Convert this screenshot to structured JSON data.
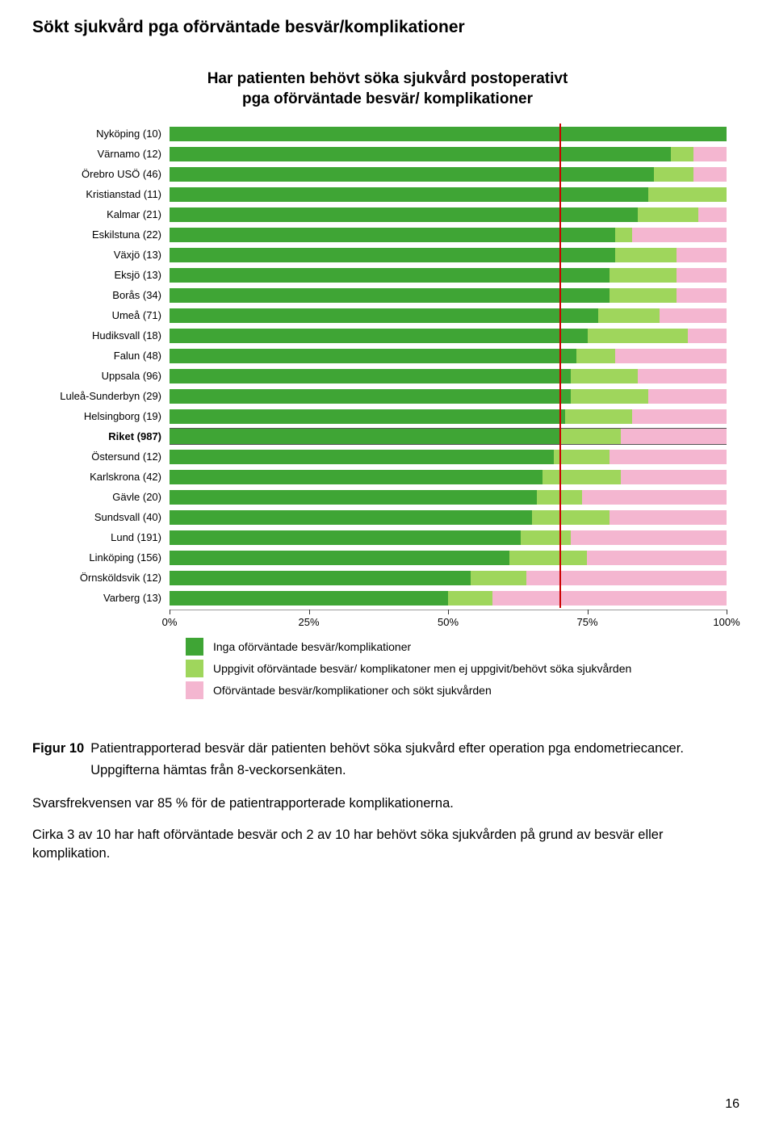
{
  "heading": "Sökt sjukvård pga oförväntade besvär/komplikationer",
  "chart": {
    "type": "stacked-bar-horizontal",
    "title_line1": "Har patienten behövt söka sjukvård postoperativt",
    "title_line2": "pga oförväntade besvär/ komplikationer",
    "xlim": [
      0,
      100
    ],
    "xticks": [
      0,
      25,
      50,
      75,
      100
    ],
    "xtick_labels": [
      "0%",
      "25%",
      "50%",
      "75%",
      "100%"
    ],
    "reference_line": {
      "value": 70,
      "color": "#cc0000"
    },
    "colors": {
      "seg1": "#3fa535",
      "seg2": "#9fd65c",
      "seg3": "#f4b6d0"
    },
    "label_fontsize": 13,
    "rows": [
      {
        "label": "Nyköping (10)",
        "v": [
          100,
          0,
          0
        ],
        "bold": false
      },
      {
        "label": "Värnamo (12)",
        "v": [
          90,
          4,
          6
        ],
        "bold": false
      },
      {
        "label": "Örebro USÖ (46)",
        "v": [
          87,
          7,
          6
        ],
        "bold": false
      },
      {
        "label": "Kristianstad (11)",
        "v": [
          86,
          14,
          0
        ],
        "bold": false
      },
      {
        "label": "Kalmar (21)",
        "v": [
          84,
          11,
          5
        ],
        "bold": false
      },
      {
        "label": "Eskilstuna (22)",
        "v": [
          80,
          3,
          17
        ],
        "bold": false
      },
      {
        "label": "Växjö (13)",
        "v": [
          80,
          11,
          9
        ],
        "bold": false
      },
      {
        "label": "Eksjö (13)",
        "v": [
          79,
          12,
          9
        ],
        "bold": false
      },
      {
        "label": "Borås (34)",
        "v": [
          79,
          12,
          9
        ],
        "bold": false
      },
      {
        "label": "Umeå (71)",
        "v": [
          77,
          11,
          12
        ],
        "bold": false
      },
      {
        "label": "Hudiksvall (18)",
        "v": [
          75,
          18,
          7
        ],
        "bold": false
      },
      {
        "label": "Falun (48)",
        "v": [
          73,
          7,
          20
        ],
        "bold": false
      },
      {
        "label": "Uppsala (96)",
        "v": [
          72,
          12,
          16
        ],
        "bold": false
      },
      {
        "label": "Luleå-Sunderbyn (29)",
        "v": [
          72,
          14,
          14
        ],
        "bold": false
      },
      {
        "label": "Helsingborg (19)",
        "v": [
          71,
          12,
          17
        ],
        "bold": false
      },
      {
        "label": "Riket (987)",
        "v": [
          70,
          11,
          19
        ],
        "bold": true
      },
      {
        "label": "Östersund (12)",
        "v": [
          69,
          10,
          21
        ],
        "bold": false
      },
      {
        "label": "Karlskrona (42)",
        "v": [
          67,
          14,
          19
        ],
        "bold": false
      },
      {
        "label": "Gävle (20)",
        "v": [
          66,
          8,
          26
        ],
        "bold": false
      },
      {
        "label": "Sundsvall (40)",
        "v": [
          65,
          14,
          21
        ],
        "bold": false
      },
      {
        "label": "Lund (191)",
        "v": [
          63,
          9,
          28
        ],
        "bold": false
      },
      {
        "label": "Linköping (156)",
        "v": [
          61,
          14,
          25
        ],
        "bold": false
      },
      {
        "label": "Örnsköldsvik (12)",
        "v": [
          54,
          10,
          36
        ],
        "bold": false
      },
      {
        "label": "Varberg (13)",
        "v": [
          50,
          8,
          42
        ],
        "bold": false
      }
    ],
    "legend": [
      {
        "color_key": "seg1",
        "label": "Inga oförväntade besvär/komplikationer"
      },
      {
        "color_key": "seg2",
        "label": "Uppgivit oförväntade besvär/ komplikatoner men ej uppgivit/behövt söka sjukvården"
      },
      {
        "color_key": "seg3",
        "label": "Oförväntade besvär/komplikationer och sökt sjukvården"
      }
    ]
  },
  "caption": {
    "lead": "Figur 10",
    "line1": "Patientrapporterad besvär där patienten behövt söka sjukvård efter operation pga endometriecancer.",
    "line2": "Uppgifterna hämtas från 8-veckorsenkäten."
  },
  "para1": "Svarsfrekvensen var 85 % för de patientrapporterade komplikationerna.",
  "para2": "Cirka 3 av 10 har haft oförväntade besvär och 2 av 10 har behövt söka sjukvården på grund av besvär eller komplikation.",
  "page_number": "16"
}
